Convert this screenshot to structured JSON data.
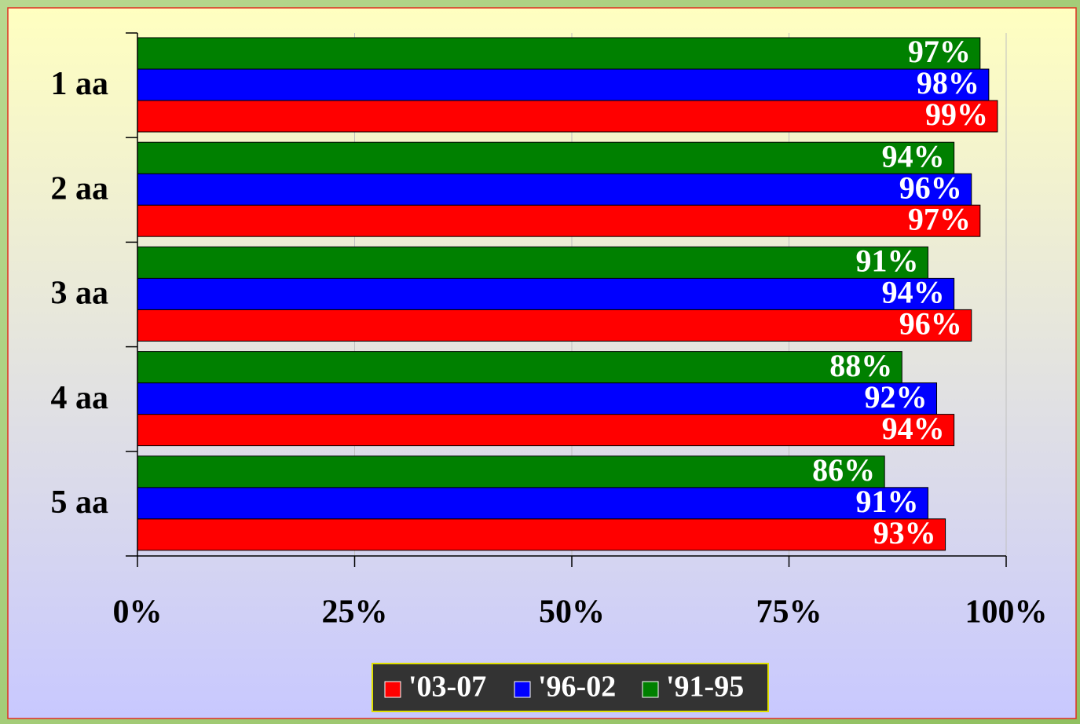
{
  "chart_data": {
    "type": "hbar",
    "categories": [
      "1 aa",
      "2 aa",
      "3 aa",
      "4 aa",
      "5 aa"
    ],
    "series": [
      {
        "name": "'03-07",
        "color": "#ff0000",
        "values": [
          99,
          97,
          96,
          94,
          93
        ],
        "value_labels": [
          "99%",
          "97%",
          "96%",
          "94%",
          "93%"
        ]
      },
      {
        "name": "'96-02",
        "color": "#0000ff",
        "values": [
          98,
          96,
          94,
          92,
          91
        ],
        "value_labels": [
          "98%",
          "96%",
          "94%",
          "92%",
          "91%"
        ]
      },
      {
        "name": "'91-95",
        "color": "#008000",
        "values": [
          97,
          94,
          91,
          88,
          86
        ],
        "value_labels": [
          "97%",
          "94%",
          "91%",
          "88%",
          "86%"
        ]
      }
    ],
    "xlim": [
      0,
      100
    ],
    "xticks": [
      {
        "value": 0,
        "label": "0%"
      },
      {
        "value": 25,
        "label": "25%"
      },
      {
        "value": 50,
        "label": "50%"
      },
      {
        "value": 75,
        "label": "75%"
      },
      {
        "value": 100,
        "label": "100%"
      }
    ],
    "grid": true,
    "legend": "bottom"
  }
}
